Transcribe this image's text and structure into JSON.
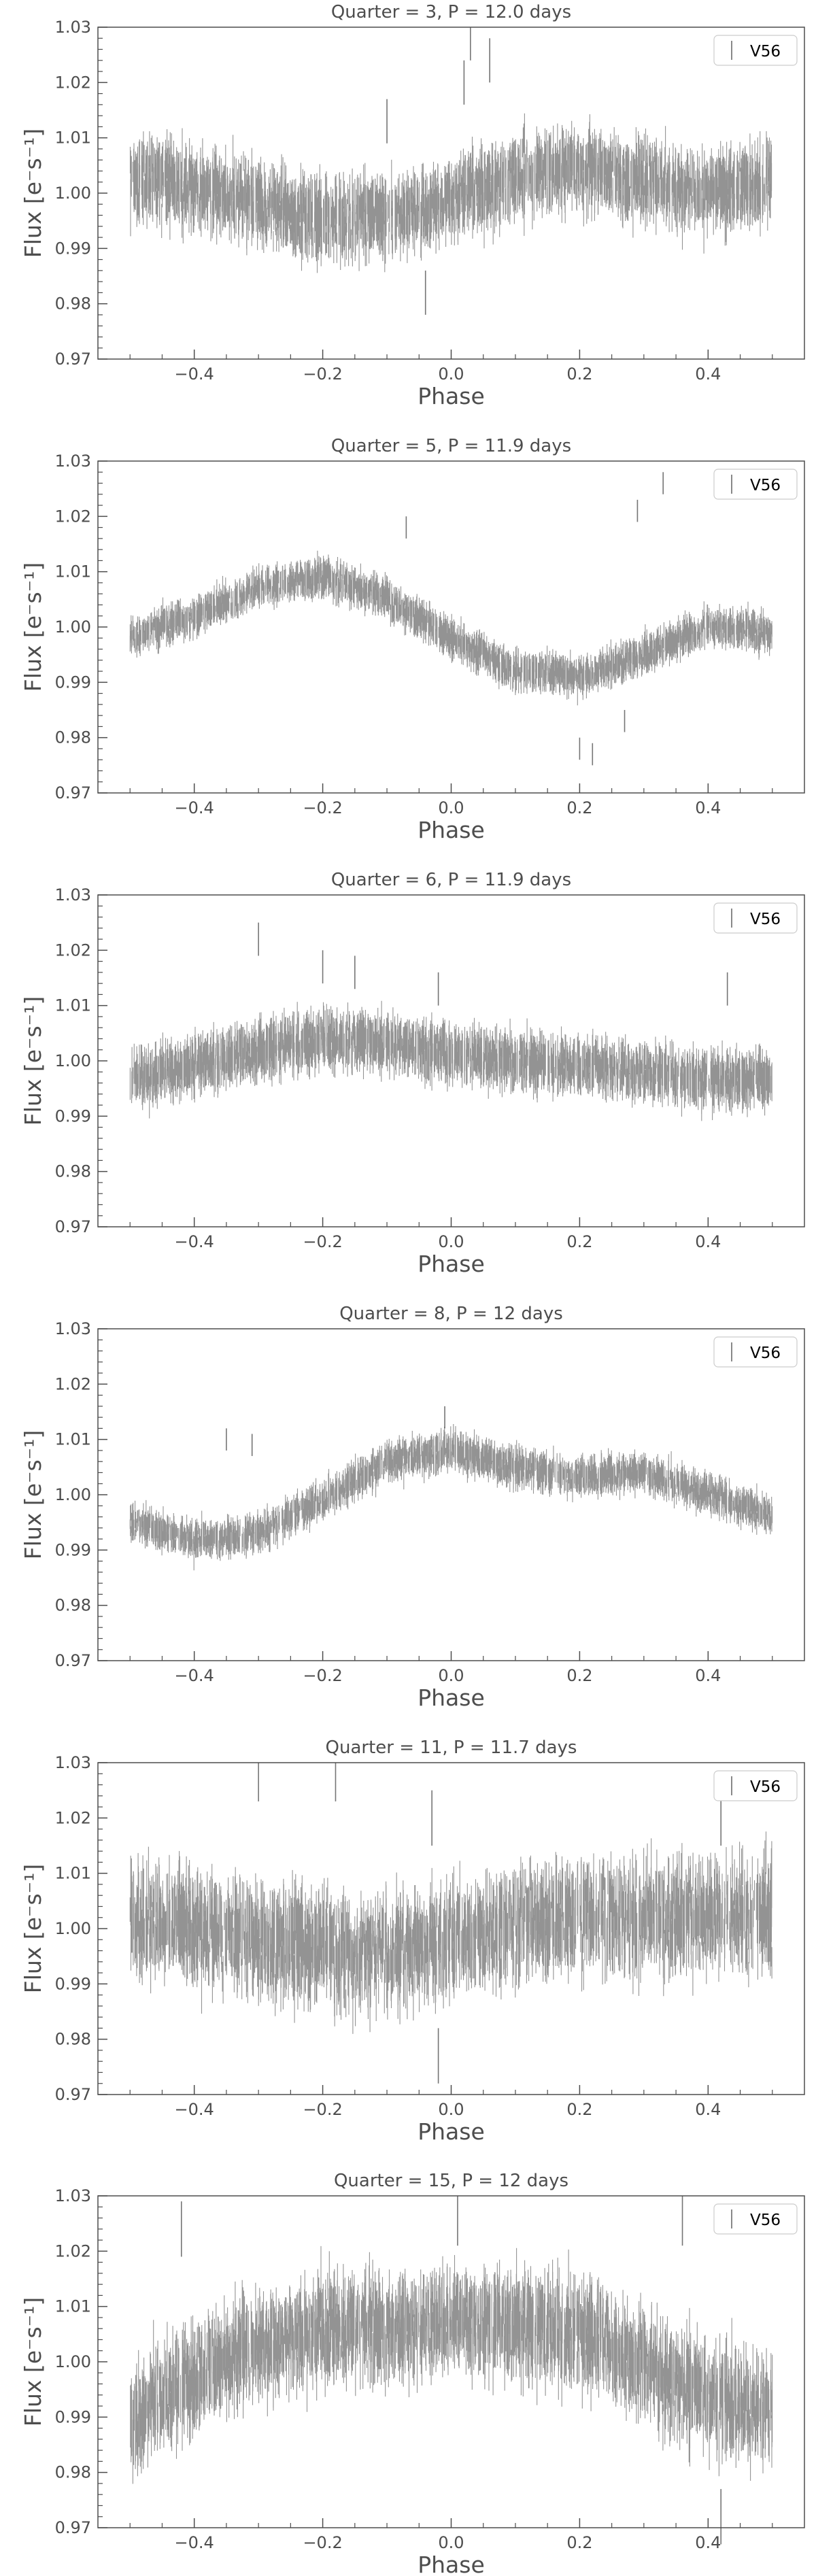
{
  "colors": {
    "data": "#3a3a3a",
    "axes": "#4d4d4d",
    "background": "#ffffff"
  },
  "chart_data": [
    {
      "type": "scatter",
      "title": "Quarter = 3, P = 12.0 days",
      "xlabel": "Phase",
      "ylabel": "Flux [e⁻s⁻¹]",
      "xlim": [
        -0.55,
        0.55
      ],
      "ylim": [
        0.97,
        1.03
      ],
      "xticks": [
        -0.4,
        -0.2,
        0.0,
        0.2,
        0.4
      ],
      "xtick_labels": [
        "−0.4",
        "−0.2",
        "0.0",
        "0.2",
        "0.4"
      ],
      "yticks": [
        0.97,
        0.98,
        0.99,
        1.0,
        1.01,
        1.02,
        1.03
      ],
      "ytick_labels": [
        "0.97",
        "0.98",
        "0.99",
        "1.00",
        "1.01",
        "1.02",
        "1.03"
      ],
      "legend": {
        "label": "V56",
        "position": "top-right"
      },
      "grid": false,
      "series": [
        {
          "name": "V56",
          "x_range": [
            -0.5,
            0.5
          ],
          "trend": [
            [
              -0.5,
              1.003
            ],
            [
              -0.4,
              1.001
            ],
            [
              -0.3,
              0.998
            ],
            [
              -0.2,
              0.995
            ],
            [
              -0.1,
              0.996
            ],
            [
              0.0,
              0.999
            ],
            [
              0.1,
              1.003
            ],
            [
              0.2,
              1.004
            ],
            [
              0.3,
              1.002
            ],
            [
              0.4,
              1.0
            ],
            [
              0.5,
              1.002
            ]
          ],
          "scatter": 0.009,
          "error": 0.004,
          "outliers": [
            [
              0.03,
              1.028
            ],
            [
              0.06,
              1.024
            ],
            [
              0.02,
              1.02
            ],
            [
              -0.1,
              1.013
            ],
            [
              -0.04,
              0.982
            ]
          ]
        }
      ]
    },
    {
      "type": "scatter",
      "title": "Quarter = 5, P = 11.9 days",
      "xlabel": "Phase",
      "ylabel": "Flux [e⁻s⁻¹]",
      "xlim": [
        -0.55,
        0.55
      ],
      "ylim": [
        0.97,
        1.03
      ],
      "xticks": [
        -0.4,
        -0.2,
        0.0,
        0.2,
        0.4
      ],
      "xtick_labels": [
        "−0.4",
        "−0.2",
        "0.0",
        "0.2",
        "0.4"
      ],
      "yticks": [
        0.97,
        0.98,
        0.99,
        1.0,
        1.01,
        1.02,
        1.03
      ],
      "ytick_labels": [
        "0.97",
        "0.98",
        "0.99",
        "1.00",
        "1.01",
        "1.02",
        "1.03"
      ],
      "legend": {
        "label": "V56",
        "position": "top-right"
      },
      "grid": false,
      "series": [
        {
          "name": "V56",
          "x_range": [
            -0.5,
            0.5
          ],
          "trend": [
            [
              -0.5,
              0.998
            ],
            [
              -0.4,
              1.002
            ],
            [
              -0.3,
              1.007
            ],
            [
              -0.2,
              1.009
            ],
            [
              -0.1,
              1.005
            ],
            [
              0.0,
              0.998
            ],
            [
              0.1,
              0.992
            ],
            [
              0.15,
              0.992
            ],
            [
              0.2,
              0.991
            ],
            [
              0.3,
              0.995
            ],
            [
              0.4,
              1.0
            ],
            [
              0.5,
              0.999
            ]
          ],
          "scatter": 0.004,
          "error": 0.002,
          "outliers": [
            [
              -0.07,
              1.018
            ],
            [
              0.29,
              1.021
            ],
            [
              0.33,
              1.026
            ],
            [
              0.2,
              0.978
            ],
            [
              0.22,
              0.977
            ],
            [
              0.27,
              0.983
            ]
          ]
        }
      ]
    },
    {
      "type": "scatter",
      "title": "Quarter = 6, P = 11.9 days",
      "xlabel": "Phase",
      "ylabel": "Flux [e⁻s⁻¹]",
      "xlim": [
        -0.55,
        0.55
      ],
      "ylim": [
        0.97,
        1.03
      ],
      "xticks": [
        -0.4,
        -0.2,
        0.0,
        0.2,
        0.4
      ],
      "xtick_labels": [
        "−0.4",
        "−0.2",
        "0.0",
        "0.2",
        "0.4"
      ],
      "yticks": [
        0.97,
        0.98,
        0.99,
        1.0,
        1.01,
        1.02,
        1.03
      ],
      "ytick_labels": [
        "0.97",
        "0.98",
        "0.99",
        "1.00",
        "1.01",
        "1.02",
        "1.03"
      ],
      "legend": {
        "label": "V56",
        "position": "top-right"
      },
      "grid": false,
      "series": [
        {
          "name": "V56",
          "x_range": [
            -0.5,
            0.5
          ],
          "trend": [
            [
              -0.5,
              0.997
            ],
            [
              -0.4,
              0.999
            ],
            [
              -0.3,
              1.002
            ],
            [
              -0.2,
              1.004
            ],
            [
              -0.1,
              1.003
            ],
            [
              0.0,
              1.001
            ],
            [
              0.1,
              1.0
            ],
            [
              0.2,
              0.999
            ],
            [
              0.3,
              0.998
            ],
            [
              0.4,
              0.997
            ],
            [
              0.5,
              0.996
            ]
          ],
          "scatter": 0.006,
          "error": 0.003,
          "outliers": [
            [
              -0.3,
              1.022
            ],
            [
              -0.2,
              1.017
            ],
            [
              -0.15,
              1.016
            ],
            [
              -0.02,
              1.013
            ],
            [
              0.43,
              1.013
            ]
          ]
        }
      ]
    },
    {
      "type": "scatter",
      "title": "Quarter = 8, P = 12 days",
      "xlabel": "Phase",
      "ylabel": "Flux [e⁻s⁻¹]",
      "xlim": [
        -0.55,
        0.55
      ],
      "ylim": [
        0.97,
        1.03
      ],
      "xticks": [
        -0.4,
        -0.2,
        0.0,
        0.2,
        0.4
      ],
      "xtick_labels": [
        "−0.4",
        "−0.2",
        "0.0",
        "0.2",
        "0.4"
      ],
      "yticks": [
        0.97,
        0.98,
        0.99,
        1.0,
        1.01,
        1.02,
        1.03
      ],
      "ytick_labels": [
        "0.97",
        "0.98",
        "0.99",
        "1.00",
        "1.01",
        "1.02",
        "1.03"
      ],
      "legend": {
        "label": "V56",
        "position": "top-right"
      },
      "grid": false,
      "series": [
        {
          "name": "V56",
          "x_range": [
            -0.5,
            0.5
          ],
          "trend": [
            [
              -0.5,
              0.995
            ],
            [
              -0.4,
              0.992
            ],
            [
              -0.3,
              0.993
            ],
            [
              -0.2,
              0.999
            ],
            [
              -0.1,
              1.006
            ],
            [
              0.0,
              1.008
            ],
            [
              0.1,
              1.005
            ],
            [
              0.2,
              1.003
            ],
            [
              0.3,
              1.004
            ],
            [
              0.4,
              1.0
            ],
            [
              0.5,
              0.996
            ]
          ],
          "scatter": 0.004,
          "error": 0.002,
          "outliers": [
            [
              -0.35,
              1.01
            ],
            [
              -0.31,
              1.009
            ],
            [
              -0.01,
              1.014
            ]
          ]
        }
      ]
    },
    {
      "type": "scatter",
      "title": "Quarter = 11, P = 11.7 days",
      "xlabel": "Phase",
      "ylabel": "Flux [e⁻s⁻¹]",
      "xlim": [
        -0.55,
        0.55
      ],
      "ylim": [
        0.97,
        1.03
      ],
      "xticks": [
        -0.4,
        -0.2,
        0.0,
        0.2,
        0.4
      ],
      "xtick_labels": [
        "−0.4",
        "−0.2",
        "0.0",
        "0.2",
        "0.4"
      ],
      "yticks": [
        0.97,
        0.98,
        0.99,
        1.0,
        1.01,
        1.02,
        1.03
      ],
      "ytick_labels": [
        "0.97",
        "0.98",
        "0.99",
        "1.00",
        "1.01",
        "1.02",
        "1.03"
      ],
      "legend": {
        "label": "V56",
        "position": "top-right"
      },
      "grid": false,
      "series": [
        {
          "name": "V56",
          "x_range": [
            -0.5,
            0.5
          ],
          "trend": [
            [
              -0.5,
              1.002
            ],
            [
              -0.4,
              1.0
            ],
            [
              -0.3,
              0.998
            ],
            [
              -0.2,
              0.996
            ],
            [
              -0.1,
              0.995
            ],
            [
              -0.03,
              0.998
            ],
            [
              0.0,
              0.998
            ],
            [
              0.1,
              1.001
            ],
            [
              0.2,
              1.002
            ],
            [
              0.3,
              1.002
            ],
            [
              0.4,
              1.002
            ],
            [
              0.5,
              1.003
            ]
          ],
          "scatter": 0.013,
          "error": 0.005,
          "outliers": [
            [
              -0.3,
              1.028
            ],
            [
              -0.18,
              1.028
            ],
            [
              -0.03,
              1.02
            ],
            [
              0.42,
              1.02
            ],
            [
              -0.02,
              0.977
            ]
          ]
        }
      ]
    },
    {
      "type": "scatter",
      "title": "Quarter = 15, P = 12 days",
      "xlabel": "Phase",
      "ylabel": "Flux [e⁻s⁻¹]",
      "xlim": [
        -0.55,
        0.55
      ],
      "ylim": [
        0.97,
        1.03
      ],
      "xticks": [
        -0.4,
        -0.2,
        0.0,
        0.2,
        0.4
      ],
      "xtick_labels": [
        "−0.4",
        "−0.2",
        "0.0",
        "0.2",
        "0.4"
      ],
      "yticks": [
        0.97,
        0.98,
        0.99,
        1.0,
        1.01,
        1.02,
        1.03
      ],
      "ytick_labels": [
        "0.97",
        "0.98",
        "0.99",
        "1.00",
        "1.01",
        "1.02",
        "1.03"
      ],
      "legend": {
        "label": "V56",
        "position": "top-right"
      },
      "grid": false,
      "series": [
        {
          "name": "V56",
          "x_range": [
            -0.5,
            0.5
          ],
          "trend": [
            [
              -0.5,
              0.99
            ],
            [
              -0.4,
              0.997
            ],
            [
              -0.3,
              1.003
            ],
            [
              -0.2,
              1.006
            ],
            [
              -0.1,
              1.006
            ],
            [
              0.0,
              1.007
            ],
            [
              0.1,
              1.007
            ],
            [
              0.2,
              1.005
            ],
            [
              0.3,
              1.0
            ],
            [
              0.4,
              0.993
            ],
            [
              0.5,
              0.991
            ]
          ],
          "scatter": 0.012,
          "error": 0.005,
          "outliers": [
            [
              -0.42,
              1.024
            ],
            [
              0.01,
              1.026
            ],
            [
              0.36,
              1.026
            ],
            [
              0.42,
              0.972
            ]
          ]
        }
      ]
    }
  ]
}
